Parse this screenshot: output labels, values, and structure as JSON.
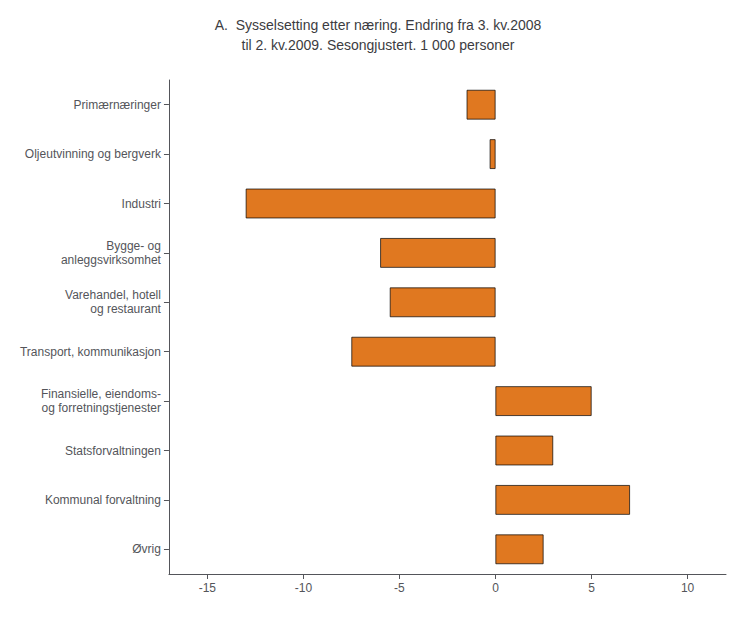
{
  "chart_data": {
    "type": "bar",
    "orientation": "horizontal",
    "title": "A.  Sysselsetting etter næring. Endring fra 3. kv.2008\ntil 2. kv.2009. Sesongjustert. 1 000 personer",
    "categories": [
      "Primærnæringer",
      "Oljeutvinning og bergverk",
      "Industri",
      "Bygge- og\nanleggsvirksomhet",
      "Varehandel, hotell\nog restaurant",
      "Transport, kommunikasjon",
      "Finansielle, eiendoms-\nog forretningstjenester",
      "Statsforvaltningen",
      "Kommunal forvaltning",
      "Øvrig"
    ],
    "values": [
      -1.5,
      -0.3,
      -13.0,
      -6.0,
      -5.5,
      -7.5,
      5.0,
      3.0,
      7.0,
      2.5
    ],
    "color": "#E07820",
    "xlim": [
      -17,
      12
    ],
    "xticks": [
      -15,
      -10,
      -5,
      0,
      5,
      10
    ],
    "grid": false
  }
}
